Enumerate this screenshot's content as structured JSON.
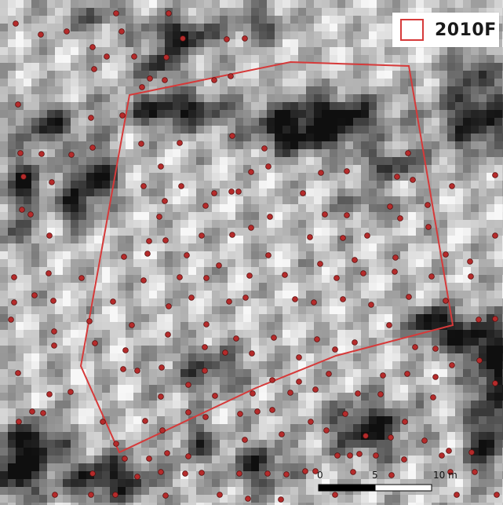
{
  "legend": {
    "label": "2010F",
    "color": "#d63a3a"
  },
  "scale_bar": {
    "ticks": [
      "0",
      "5",
      "10 m"
    ],
    "unit": "m"
  },
  "icons": {
    "tree_point": "red-dot-icon",
    "legend_swatch": "red-square-outline-icon"
  },
  "colors": {
    "boundary": "#d63a3a",
    "points": "#b52b2b",
    "point_stroke": "#5a0f0f",
    "raster_light": "#f4f4f4",
    "raster_dark": "#141414"
  }
}
